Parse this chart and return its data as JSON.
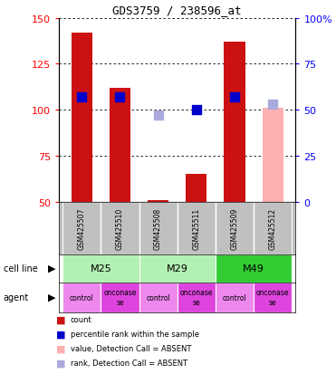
{
  "title": "GDS3759 / 238596_at",
  "samples": [
    "GSM425507",
    "GSM425510",
    "GSM425508",
    "GSM425511",
    "GSM425509",
    "GSM425512"
  ],
  "count_values": [
    142,
    112,
    51,
    65,
    137,
    101
  ],
  "count_absent": [
    false,
    false,
    false,
    false,
    false,
    true
  ],
  "rank_values": [
    57,
    57,
    47,
    50,
    57,
    53
  ],
  "rank_absent": [
    false,
    false,
    false,
    false,
    false,
    false
  ],
  "rank_absent_flags": [
    false,
    false,
    true,
    false,
    false,
    true
  ],
  "ylim_left": [
    50,
    150
  ],
  "ylim_right": [
    0,
    100
  ],
  "yticks_left": [
    50,
    75,
    100,
    125,
    150
  ],
  "yticks_right": [
    0,
    25,
    50,
    75,
    100
  ],
  "ytick_labels_right": [
    "0",
    "25",
    "50",
    "75",
    "100%"
  ],
  "cell_lines": [
    [
      "M25",
      0,
      2
    ],
    [
      "M29",
      2,
      4
    ],
    [
      "M49",
      4,
      6
    ]
  ],
  "cell_line_colors": [
    "#b3f0b3",
    "#b3f0b3",
    "#33cc33"
  ],
  "agent_labels": [
    "control",
    "onconase\nse",
    "control",
    "onconase\nse",
    "control",
    "onconase\nse"
  ],
  "agent_colors": [
    "#ee88ee",
    "#dd44dd",
    "#ee88ee",
    "#dd44dd",
    "#ee88ee",
    "#dd44dd"
  ],
  "bar_color_present": "#cc1111",
  "bar_color_absent": "#ffb0b0",
  "rank_color_present": "#0000cc",
  "rank_color_absent": "#aaaadd",
  "bar_width": 0.55,
  "rank_marker_size": 55,
  "sample_row_color": "#c0c0c0",
  "legend_items": [
    [
      "#cc1111",
      "count"
    ],
    [
      "#0000cc",
      "percentile rank within the sample"
    ],
    [
      "#ffb0b0",
      "value, Detection Call = ABSENT"
    ],
    [
      "#aaaadd",
      "rank, Detection Call = ABSENT"
    ]
  ]
}
